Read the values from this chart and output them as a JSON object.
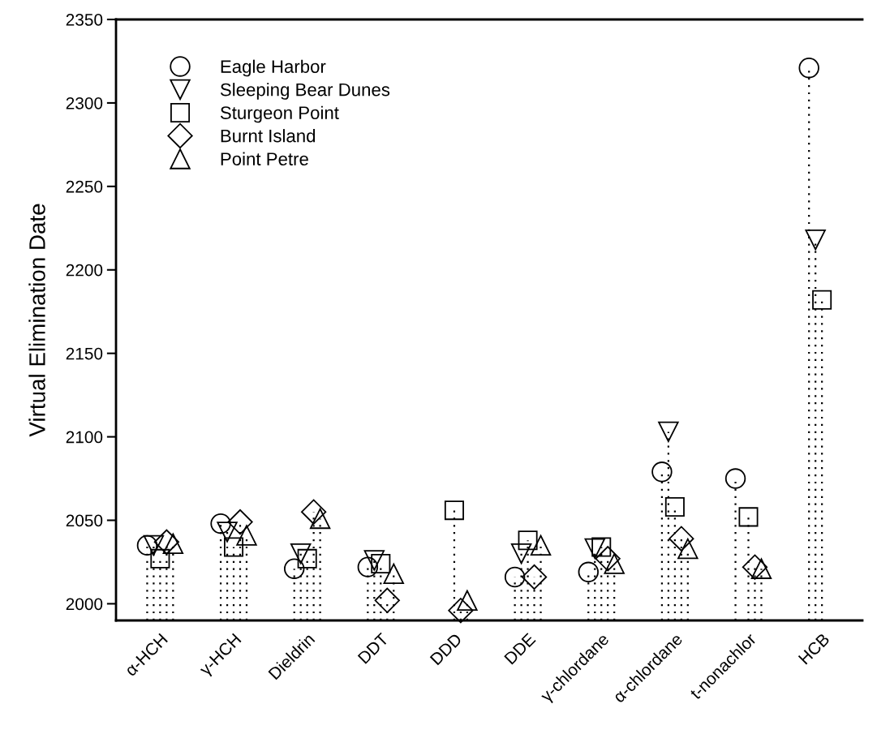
{
  "chart_data": {
    "type": "lollipop",
    "ylabel": "Virtual Elimination Date",
    "categories": [
      "α-HCH",
      "γ-HCH",
      "Dieldrin",
      "DDT",
      "DDD",
      "DDE",
      "γ-chlordane",
      "α-chlordane",
      "t-nonachlor",
      "HCB"
    ],
    "series": [
      {
        "name": "Eagle Harbor",
        "color": "#000000",
        "marker": "circle",
        "values": [
          2035,
          2048,
          2021,
          2022,
          null,
          2016,
          2019,
          2079,
          2075,
          2321
        ]
      },
      {
        "name": "Sleeping Bear Dunes",
        "color": "#000000",
        "marker": "triangle_down",
        "values": [
          2035,
          2043,
          2030,
          2026,
          null,
          2030,
          2033,
          2103,
          null,
          2218
        ]
      },
      {
        "name": "Sturgeon Point",
        "color": "#000000",
        "marker": "square",
        "values": [
          2027,
          2034,
          2027,
          2024,
          2056,
          2038,
          2034,
          2058,
          2052,
          2182
        ]
      },
      {
        "name": "Burnt Island",
        "color": "#000000",
        "marker": "diamond",
        "values": [
          2037,
          2049,
          2055,
          2002,
          1996,
          2016,
          2027,
          2039,
          2022,
          null
        ]
      },
      {
        "name": "Point Petre",
        "color": "#000000",
        "marker": "triangle",
        "values": [
          2036,
          2041,
          2051,
          2018,
          2002,
          2035,
          2024,
          2033,
          2021,
          null
        ]
      }
    ],
    "ylim": [
      1990,
      2350
    ],
    "yticks": [
      2000,
      2050,
      2100,
      2150,
      2200,
      2250,
      2300,
      2350
    ],
    "line_style": "dotted",
    "legend": "top left",
    "grid": false
  }
}
